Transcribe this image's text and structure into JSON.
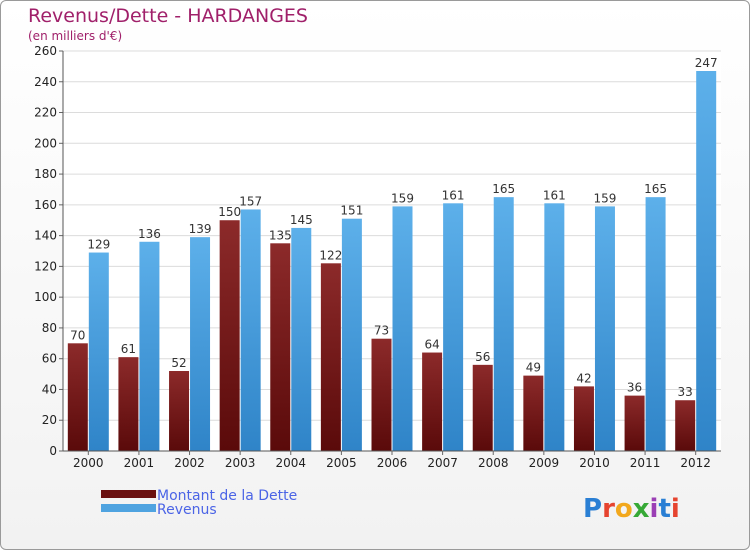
{
  "title": "Revenus/Dette - HARDANGES",
  "subtitle": "(en milliers d'€)",
  "logo": "Proxiti",
  "colors": {
    "debt": "#7a1a1a",
    "revenue": "#4fa3e0",
    "title": "#a0206a",
    "legend_text": "#4b64e6"
  },
  "chart_data": {
    "type": "bar",
    "title": "Revenus/Dette - HARDANGES",
    "ylabel": "(en milliers d'€)",
    "xlabel": "",
    "ylim": [
      0,
      260
    ],
    "yticks": [
      0,
      20,
      40,
      60,
      80,
      100,
      120,
      140,
      160,
      180,
      200,
      220,
      240,
      260
    ],
    "grid": true,
    "legend_position": "bottom-left",
    "categories": [
      "2000",
      "2001",
      "2002",
      "2003",
      "2004",
      "2005",
      "2006",
      "2007",
      "2008",
      "2009",
      "2010",
      "2011",
      "2012"
    ],
    "series": [
      {
        "name": "Montant de la Dette",
        "color": "#7a1a1a",
        "values": [
          70,
          61,
          52,
          150,
          135,
          122,
          73,
          64,
          56,
          49,
          42,
          36,
          33
        ]
      },
      {
        "name": "Revenus",
        "color": "#4fa3e0",
        "values": [
          129,
          136,
          139,
          157,
          145,
          151,
          159,
          161,
          165,
          161,
          159,
          165,
          247
        ]
      }
    ]
  }
}
